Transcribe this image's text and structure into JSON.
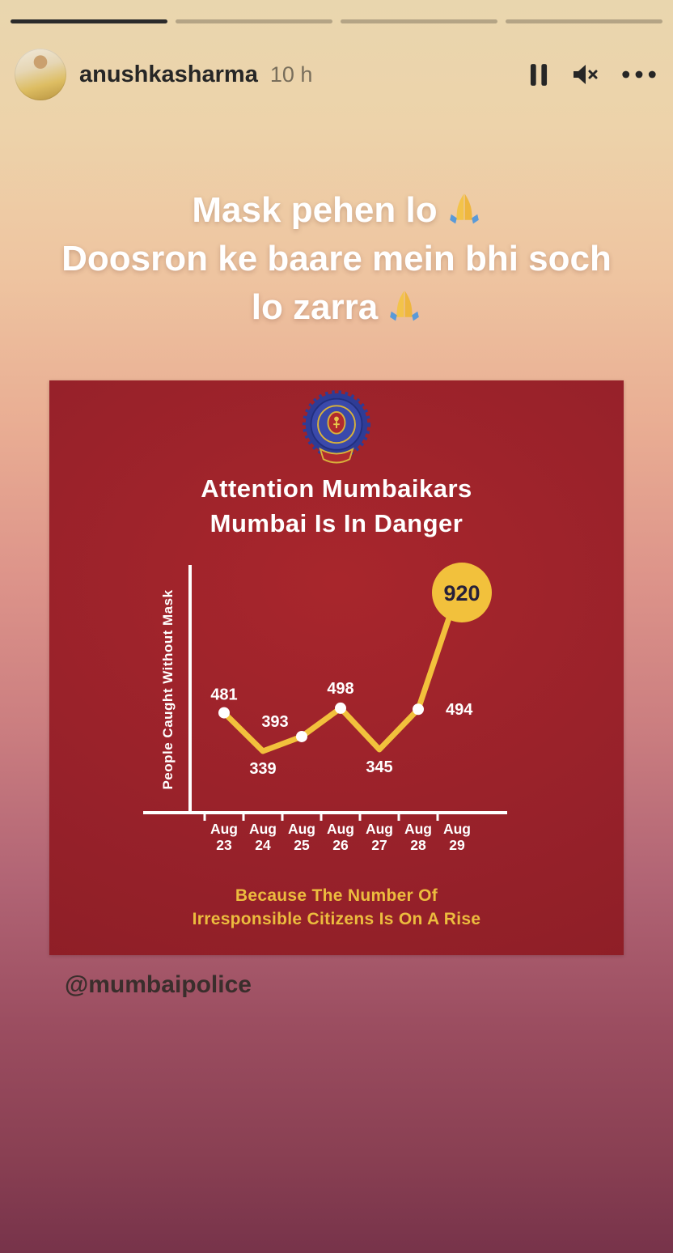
{
  "progress": {
    "total": 4,
    "active": 1
  },
  "header": {
    "username": "anushkasharma",
    "timestamp": "10 h"
  },
  "icons": {
    "pause": "pause-icon",
    "mute": "volume-muted-icon",
    "more": "more-options-icon",
    "caption_emoji": "folded-hands-emoji",
    "logo": "mumbai-police-badge"
  },
  "caption": {
    "line1": "Mask pehen lo",
    "line2": "Doosron ke baare mein bhi soch",
    "line3": "lo zarra"
  },
  "card": {
    "title_line1": "Attention Mumbaikars",
    "title_line2": "Mumbai Is In Danger",
    "footer_line1": "Because The Number Of",
    "footer_line2": "Irresponsible Citizens Is On A Rise"
  },
  "chart_data": {
    "type": "line",
    "categories": [
      "Aug 23",
      "Aug 24",
      "Aug 25",
      "Aug 26",
      "Aug 27",
      "Aug 28",
      "Aug 29"
    ],
    "values": [
      481,
      339,
      393,
      498,
      345,
      494,
      920
    ],
    "title": "Attention Mumbaikars - Mumbai Is In Danger",
    "xlabel": "",
    "ylabel": "People Caught Without Mask",
    "ylim": [
      0,
      1000
    ],
    "grid": false,
    "legend": false,
    "line_color": "#F2C13C",
    "point_color": "#FFFFFF",
    "axis_color": "#FFFFFF",
    "label_color": "#FFFFFF",
    "highlight": {
      "category": "Aug 29",
      "value": 920,
      "style": "yellow-circle-badge"
    }
  },
  "mention": {
    "label": "@mumbaipolice"
  },
  "colors": {
    "card_bg": "#9A2127",
    "accent_yellow": "#F2C13C",
    "footer_yellow": "#ECBC3E",
    "header_text": "#262626",
    "caption_text": "#FFFFFF"
  }
}
